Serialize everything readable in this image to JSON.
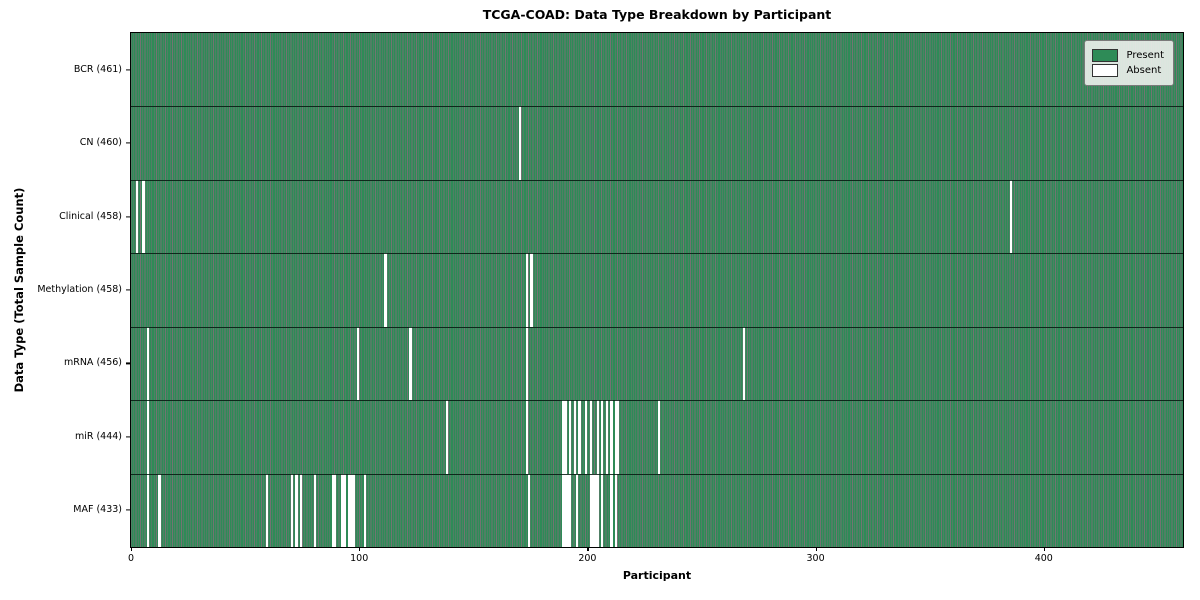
{
  "chart_data": {
    "type": "heatmap",
    "title": "TCGA-COAD: Data Type Breakdown by Participant",
    "xlabel": "Participant",
    "ylabel": "Data Type (Total Sample Count)",
    "n_participants": 461,
    "x_ticks": [
      "0",
      "100",
      "200",
      "300",
      "400"
    ],
    "present_color": "#2e8b57",
    "absent_color": "#ffffff",
    "bar_edge_color": "rgba(0,0,0,0.55)",
    "legend_position": "upper right",
    "legend": [
      {
        "label": "Present",
        "color": "#2e8b57"
      },
      {
        "label": "Absent",
        "color": "#ffffff"
      }
    ],
    "rows": [
      {
        "name": "BCR",
        "label": "BCR (461)",
        "count": 461,
        "absent": []
      },
      {
        "name": "CN",
        "label": "CN (460)",
        "count": 460,
        "absent": [
          170
        ]
      },
      {
        "name": "Clinical",
        "label": "Clinical (458)",
        "count": 458,
        "absent": [
          2,
          5,
          385
        ]
      },
      {
        "name": "Methylation",
        "label": "Methylation (458)",
        "count": 458,
        "absent": [
          111,
          173,
          175
        ]
      },
      {
        "name": "mRNA",
        "label": "mRNA (456)",
        "count": 456,
        "absent": [
          7,
          99,
          122,
          173,
          268
        ]
      },
      {
        "name": "miR",
        "label": "miR (444)",
        "count": 444,
        "absent": [
          7,
          138,
          173,
          189,
          190,
          192,
          194,
          196,
          199,
          201,
          204,
          206,
          208,
          210,
          212,
          213,
          231
        ]
      },
      {
        "name": "MAF",
        "label": "MAF (433)",
        "count": 433,
        "absent": [
          7,
          12,
          59,
          70,
          72,
          74,
          80,
          88,
          89,
          92,
          93,
          95,
          96,
          97,
          102,
          174,
          189,
          190,
          191,
          192,
          195,
          201,
          202,
          203,
          204,
          206,
          210,
          212
        ]
      }
    ]
  }
}
